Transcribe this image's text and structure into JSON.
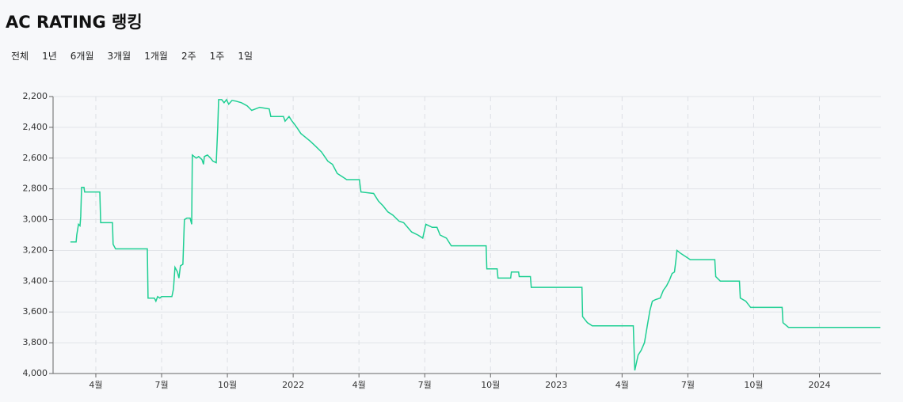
{
  "chart_data": {
    "type": "line",
    "title": "AC RATING 랭킹",
    "range_buttons": [
      "전체",
      "1년",
      "6개월",
      "3개월",
      "1개월",
      "2주",
      "1주",
      "1일"
    ],
    "color": "#1ecf93",
    "reverse_y": true,
    "grid": true,
    "xlim": [
      1.05,
      38.8
    ],
    "xticks": [
      {
        "value": 3,
        "label": "4월"
      },
      {
        "value": 6,
        "label": "7월"
      },
      {
        "value": 9,
        "label": "10월"
      },
      {
        "value": 12,
        "label": "2022"
      },
      {
        "value": 15,
        "label": "4월"
      },
      {
        "value": 18,
        "label": "7월"
      },
      {
        "value": 21,
        "label": "10월"
      },
      {
        "value": 24,
        "label": "2023"
      },
      {
        "value": 27,
        "label": "4월"
      },
      {
        "value": 30,
        "label": "7월"
      },
      {
        "value": 33,
        "label": "10월"
      },
      {
        "value": 36,
        "label": "2024"
      }
    ],
    "ylim": [
      2200,
      4000
    ],
    "yticks": [
      {
        "value": 2200,
        "label": "2,200"
      },
      {
        "value": 2400,
        "label": "2,400"
      },
      {
        "value": 2600,
        "label": "2,600"
      },
      {
        "value": 2800,
        "label": "2,800"
      },
      {
        "value": 3000,
        "label": "3,000"
      },
      {
        "value": 3200,
        "label": "3,200"
      },
      {
        "value": 3400,
        "label": "3,400"
      },
      {
        "value": 3600,
        "label": "3,600"
      },
      {
        "value": 3800,
        "label": "3,800"
      },
      {
        "value": 4000,
        "label": "4,000"
      }
    ],
    "x": [
      1.84,
      2.1,
      2.13,
      2.21,
      2.28,
      2.31,
      2.35,
      2.46,
      2.49,
      3.18,
      3.22,
      3.76,
      3.79,
      3.9,
      5.35,
      5.38,
      5.67,
      5.74,
      5.82,
      5.92,
      6.0,
      6.47,
      6.54,
      6.61,
      6.72,
      6.79,
      6.86,
      6.97,
      7.04,
      7.15,
      7.3,
      7.37,
      7.4,
      7.58,
      7.69,
      7.84,
      7.91,
      7.95,
      8.09,
      8.23,
      8.34,
      8.49,
      8.56,
      8.6,
      8.74,
      8.85,
      8.96,
      9.06,
      9.21,
      9.39,
      9.64,
      9.9,
      10.11,
      10.47,
      10.91,
      10.98,
      11.56,
      11.63,
      11.81,
      11.95,
      12.06,
      12.21,
      12.35,
      12.78,
      13.0,
      13.29,
      13.58,
      13.79,
      14.01,
      14.23,
      14.44,
      15.02,
      15.09,
      15.67,
      15.89,
      16.1,
      16.32,
      16.54,
      16.83,
      17.04,
      17.4,
      17.69,
      17.91,
      18.05,
      18.34,
      18.56,
      18.7,
      18.99,
      19.21,
      20.8,
      20.83,
      21.3,
      21.34,
      21.92,
      21.95,
      22.28,
      22.31,
      22.82,
      22.86,
      25.17,
      25.2,
      25.42,
      25.64,
      27.51,
      27.58,
      27.73,
      27.87,
      28.02,
      28.16,
      28.27,
      28.38,
      28.52,
      28.74,
      28.88,
      29.03,
      29.17,
      29.28,
      29.39,
      29.46,
      29.5,
      29.68,
      29.9,
      30.11,
      31.23,
      31.27,
      31.48,
      32.35,
      32.39,
      32.64,
      32.86,
      34.3,
      34.34,
      34.59,
      38.78
    ],
    "values": [
      3145,
      3145,
      3100,
      3030,
      3040,
      2980,
      2790,
      2790,
      2820,
      2820,
      3020,
      3020,
      3160,
      3190,
      3190,
      3510,
      3510,
      3530,
      3500,
      3510,
      3500,
      3500,
      3450,
      3310,
      3340,
      3380,
      3300,
      3290,
      3000,
      2990,
      2990,
      3030,
      2580,
      2600,
      2590,
      2610,
      2640,
      2590,
      2580,
      2600,
      2620,
      2630,
      2400,
      2220,
      2220,
      2240,
      2220,
      2250,
      2225,
      2230,
      2240,
      2260,
      2290,
      2270,
      2280,
      2330,
      2330,
      2360,
      2330,
      2360,
      2380,
      2410,
      2440,
      2490,
      2520,
      2560,
      2620,
      2640,
      2700,
      2720,
      2740,
      2740,
      2820,
      2830,
      2880,
      2910,
      2950,
      2970,
      3010,
      3020,
      3080,
      3100,
      3120,
      3030,
      3050,
      3050,
      3100,
      3120,
      3170,
      3170,
      3320,
      3320,
      3380,
      3380,
      3340,
      3340,
      3370,
      3370,
      3440,
      3440,
      3630,
      3670,
      3690,
      3690,
      3980,
      3880,
      3850,
      3800,
      3680,
      3590,
      3530,
      3520,
      3510,
      3460,
      3430,
      3390,
      3350,
      3340,
      3260,
      3200,
      3220,
      3240,
      3260,
      3260,
      3370,
      3400,
      3400,
      3510,
      3530,
      3570,
      3570,
      3670,
      3700,
      3700
    ]
  }
}
